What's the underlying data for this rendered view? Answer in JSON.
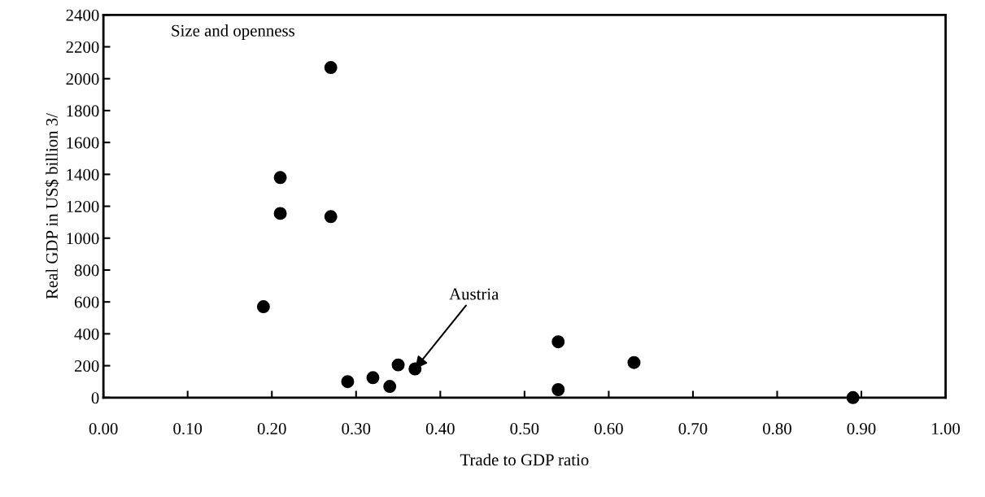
{
  "chart_data": {
    "type": "scatter",
    "title": "Size and openness",
    "xlabel": "Trade to GDP ratio",
    "ylabel": "Real GDP in US$ billion 3/",
    "x": [
      0.19,
      0.21,
      0.21,
      0.27,
      0.27,
      0.29,
      0.32,
      0.34,
      0.35,
      0.37,
      0.54,
      0.54,
      0.63,
      0.89
    ],
    "series": [
      {
        "color": "#000000",
        "values": [
          570,
          1380,
          1155,
          1135,
          2070,
          100,
          125,
          70,
          205,
          180,
          350,
          50,
          220,
          0
        ]
      }
    ],
    "annotations": [
      {
        "text": "Austria",
        "x": 0.37,
        "y": 180
      }
    ],
    "xlim": [
      0,
      1
    ],
    "ylim": [
      0,
      2400
    ],
    "xticks": [
      {
        "value": 0,
        "label": "0.00"
      },
      {
        "value": 0.1,
        "label": "0.10"
      },
      {
        "value": 0.2,
        "label": "0.20"
      },
      {
        "value": 0.3,
        "label": "0.30"
      },
      {
        "value": 0.4,
        "label": "0.40"
      },
      {
        "value": 0.5,
        "label": "0.50"
      },
      {
        "value": 0.6,
        "label": "0.60"
      },
      {
        "value": 0.7,
        "label": "0.70"
      },
      {
        "value": 0.8,
        "label": "0.80"
      },
      {
        "value": 0.9,
        "label": "0.90"
      },
      {
        "value": 1,
        "label": "1.00"
      }
    ],
    "yticks": [
      0,
      200,
      400,
      600,
      800,
      1000,
      1200,
      1400,
      1600,
      1800,
      2000,
      2200,
      2400
    ],
    "marker": "circle",
    "grid": false,
    "legend": false
  }
}
